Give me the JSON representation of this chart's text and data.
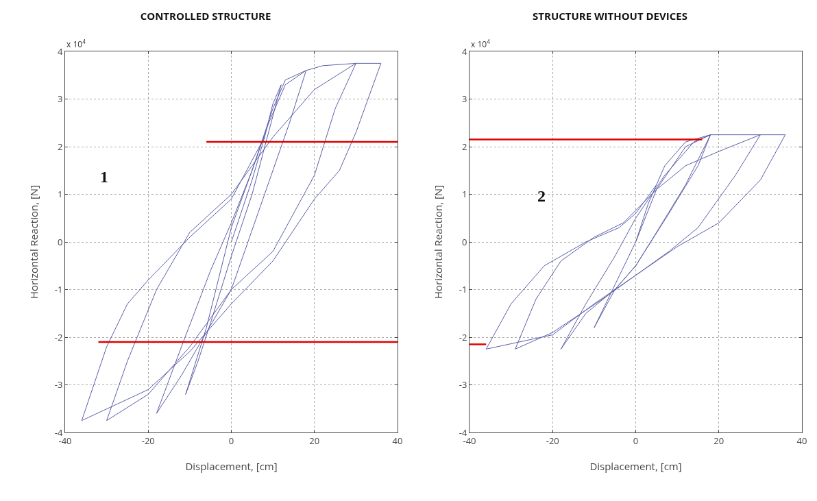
{
  "chart_data": [
    {
      "type": "line",
      "title": "CONTROLLED STRUCTURE",
      "xlabel": "Displacement, [cm]",
      "ylabel": "Horizontal Reaction, [N]",
      "xlim": [
        -40,
        40
      ],
      "xticks": [
        -40,
        -20,
        0,
        20,
        40
      ],
      "ylim": [
        -4,
        4
      ],
      "yticks": [
        -4,
        -3,
        -2,
        -1,
        0,
        1,
        2,
        3,
        4
      ],
      "grid": true,
      "marker": "none",
      "line_style": "solid",
      "annotations": [
        "x 10$^{4}$",
        "1"
      ],
      "series": [
        {
          "color": "#5a5ea8",
          "x": [
            0,
            5,
            8,
            10,
            12,
            5,
            0,
            -5,
            -8,
            -11,
            -6,
            0,
            5,
            10,
            13,
            18,
            14,
            8,
            0,
            -6,
            -12,
            -18,
            -12,
            -5,
            0,
            5,
            9,
            13,
            18,
            22,
            30,
            25,
            20,
            10,
            0,
            -10,
            -20,
            -30,
            -25,
            -18,
            -10,
            0,
            10,
            20,
            30,
            36,
            30,
            26,
            20,
            10,
            0,
            -10,
            -20,
            -36,
            -30,
            -25,
            -20,
            -10,
            0,
            8
          ],
          "values": [
            0,
            1.3,
            2.2,
            2.9,
            3.3,
            1.0,
            -0.3,
            -1.7,
            -2.5,
            -3.2,
            -1.8,
            0.3,
            1.5,
            2.8,
            3.4,
            3.6,
            2.5,
            1.0,
            -1.0,
            -1.9,
            -2.8,
            -3.6,
            -2.2,
            -0.6,
            0.4,
            1.5,
            2.5,
            3.3,
            3.6,
            3.7,
            3.75,
            2.8,
            1.4,
            -0.2,
            -1.0,
            -2.2,
            -3.2,
            -3.75,
            -2.5,
            -1.0,
            0.2,
            1.0,
            2.2,
            3.2,
            3.75,
            3.75,
            2.3,
            1.5,
            0.9,
            -0.4,
            -1.3,
            -2.3,
            -3.1,
            -3.75,
            -2.2,
            -1.3,
            -0.8,
            0.1,
            0.9,
            2.2
          ]
        },
        {
          "color": "#e00000",
          "x": [
            -6,
            40
          ],
          "values": [
            2.1,
            2.1
          ]
        },
        {
          "color": "#e00000",
          "x": [
            -32,
            40
          ],
          "values": [
            -2.1,
            -2.1
          ]
        }
      ]
    },
    {
      "type": "line",
      "title": "STRUCTURE WITHOUT DEVICES",
      "xlabel": "Displacement, [cm]",
      "ylabel": "Horizontal Reaction, [N]",
      "xlim": [
        -40,
        40
      ],
      "xticks": [
        -40,
        -20,
        0,
        20,
        40
      ],
      "ylim": [
        -4,
        4
      ],
      "yticks": [
        -4,
        -3,
        -2,
        -1,
        0,
        1,
        2,
        3,
        4
      ],
      "grid": true,
      "marker": "none",
      "line_style": "solid",
      "annotations": [
        "x 10$^{4}$",
        "2"
      ],
      "series": [
        {
          "color": "#5a5ea8",
          "x": [
            0,
            3,
            7,
            12,
            18,
            12,
            5,
            0,
            -5,
            -10,
            -5,
            0,
            5,
            12,
            18,
            15,
            8,
            0,
            -5,
            -12,
            -18,
            -12,
            -5,
            0,
            7,
            14,
            18,
            30,
            24,
            15,
            8,
            0,
            -8,
            -20,
            -29,
            -24,
            -18,
            -10,
            -3,
            5,
            12,
            20,
            30,
            36,
            30,
            20,
            10,
            0,
            -10,
            -20,
            -36,
            -30,
            -22,
            -12,
            -4,
            0,
            5
          ],
          "values": [
            0,
            0.8,
            1.6,
            2.1,
            2.25,
            1.2,
            0.2,
            -0.5,
            -1.0,
            -1.8,
            -0.9,
            0,
            1.1,
            2.0,
            2.25,
            1.6,
            0.6,
            -0.5,
            -1.0,
            -1.5,
            -2.25,
            -1.3,
            -0.3,
            0.5,
            1.4,
            2.1,
            2.25,
            2.25,
            1.4,
            0.3,
            -0.2,
            -0.7,
            -1.2,
            -1.9,
            -2.25,
            -1.2,
            -0.4,
            0.1,
            0.4,
            1.1,
            1.6,
            1.9,
            2.25,
            2.25,
            1.3,
            0.4,
            -0.1,
            -0.7,
            -1.3,
            -1.95,
            -2.25,
            -1.3,
            -0.5,
            0.0,
            0.3,
            0.6,
            1.2
          ]
        },
        {
          "color": "#e00000",
          "x": [
            -40,
            16
          ],
          "values": [
            2.15,
            2.15
          ]
        },
        {
          "color": "#e00000",
          "x": [
            -40,
            -36
          ],
          "values": [
            -2.15,
            -2.15
          ]
        }
      ]
    }
  ]
}
